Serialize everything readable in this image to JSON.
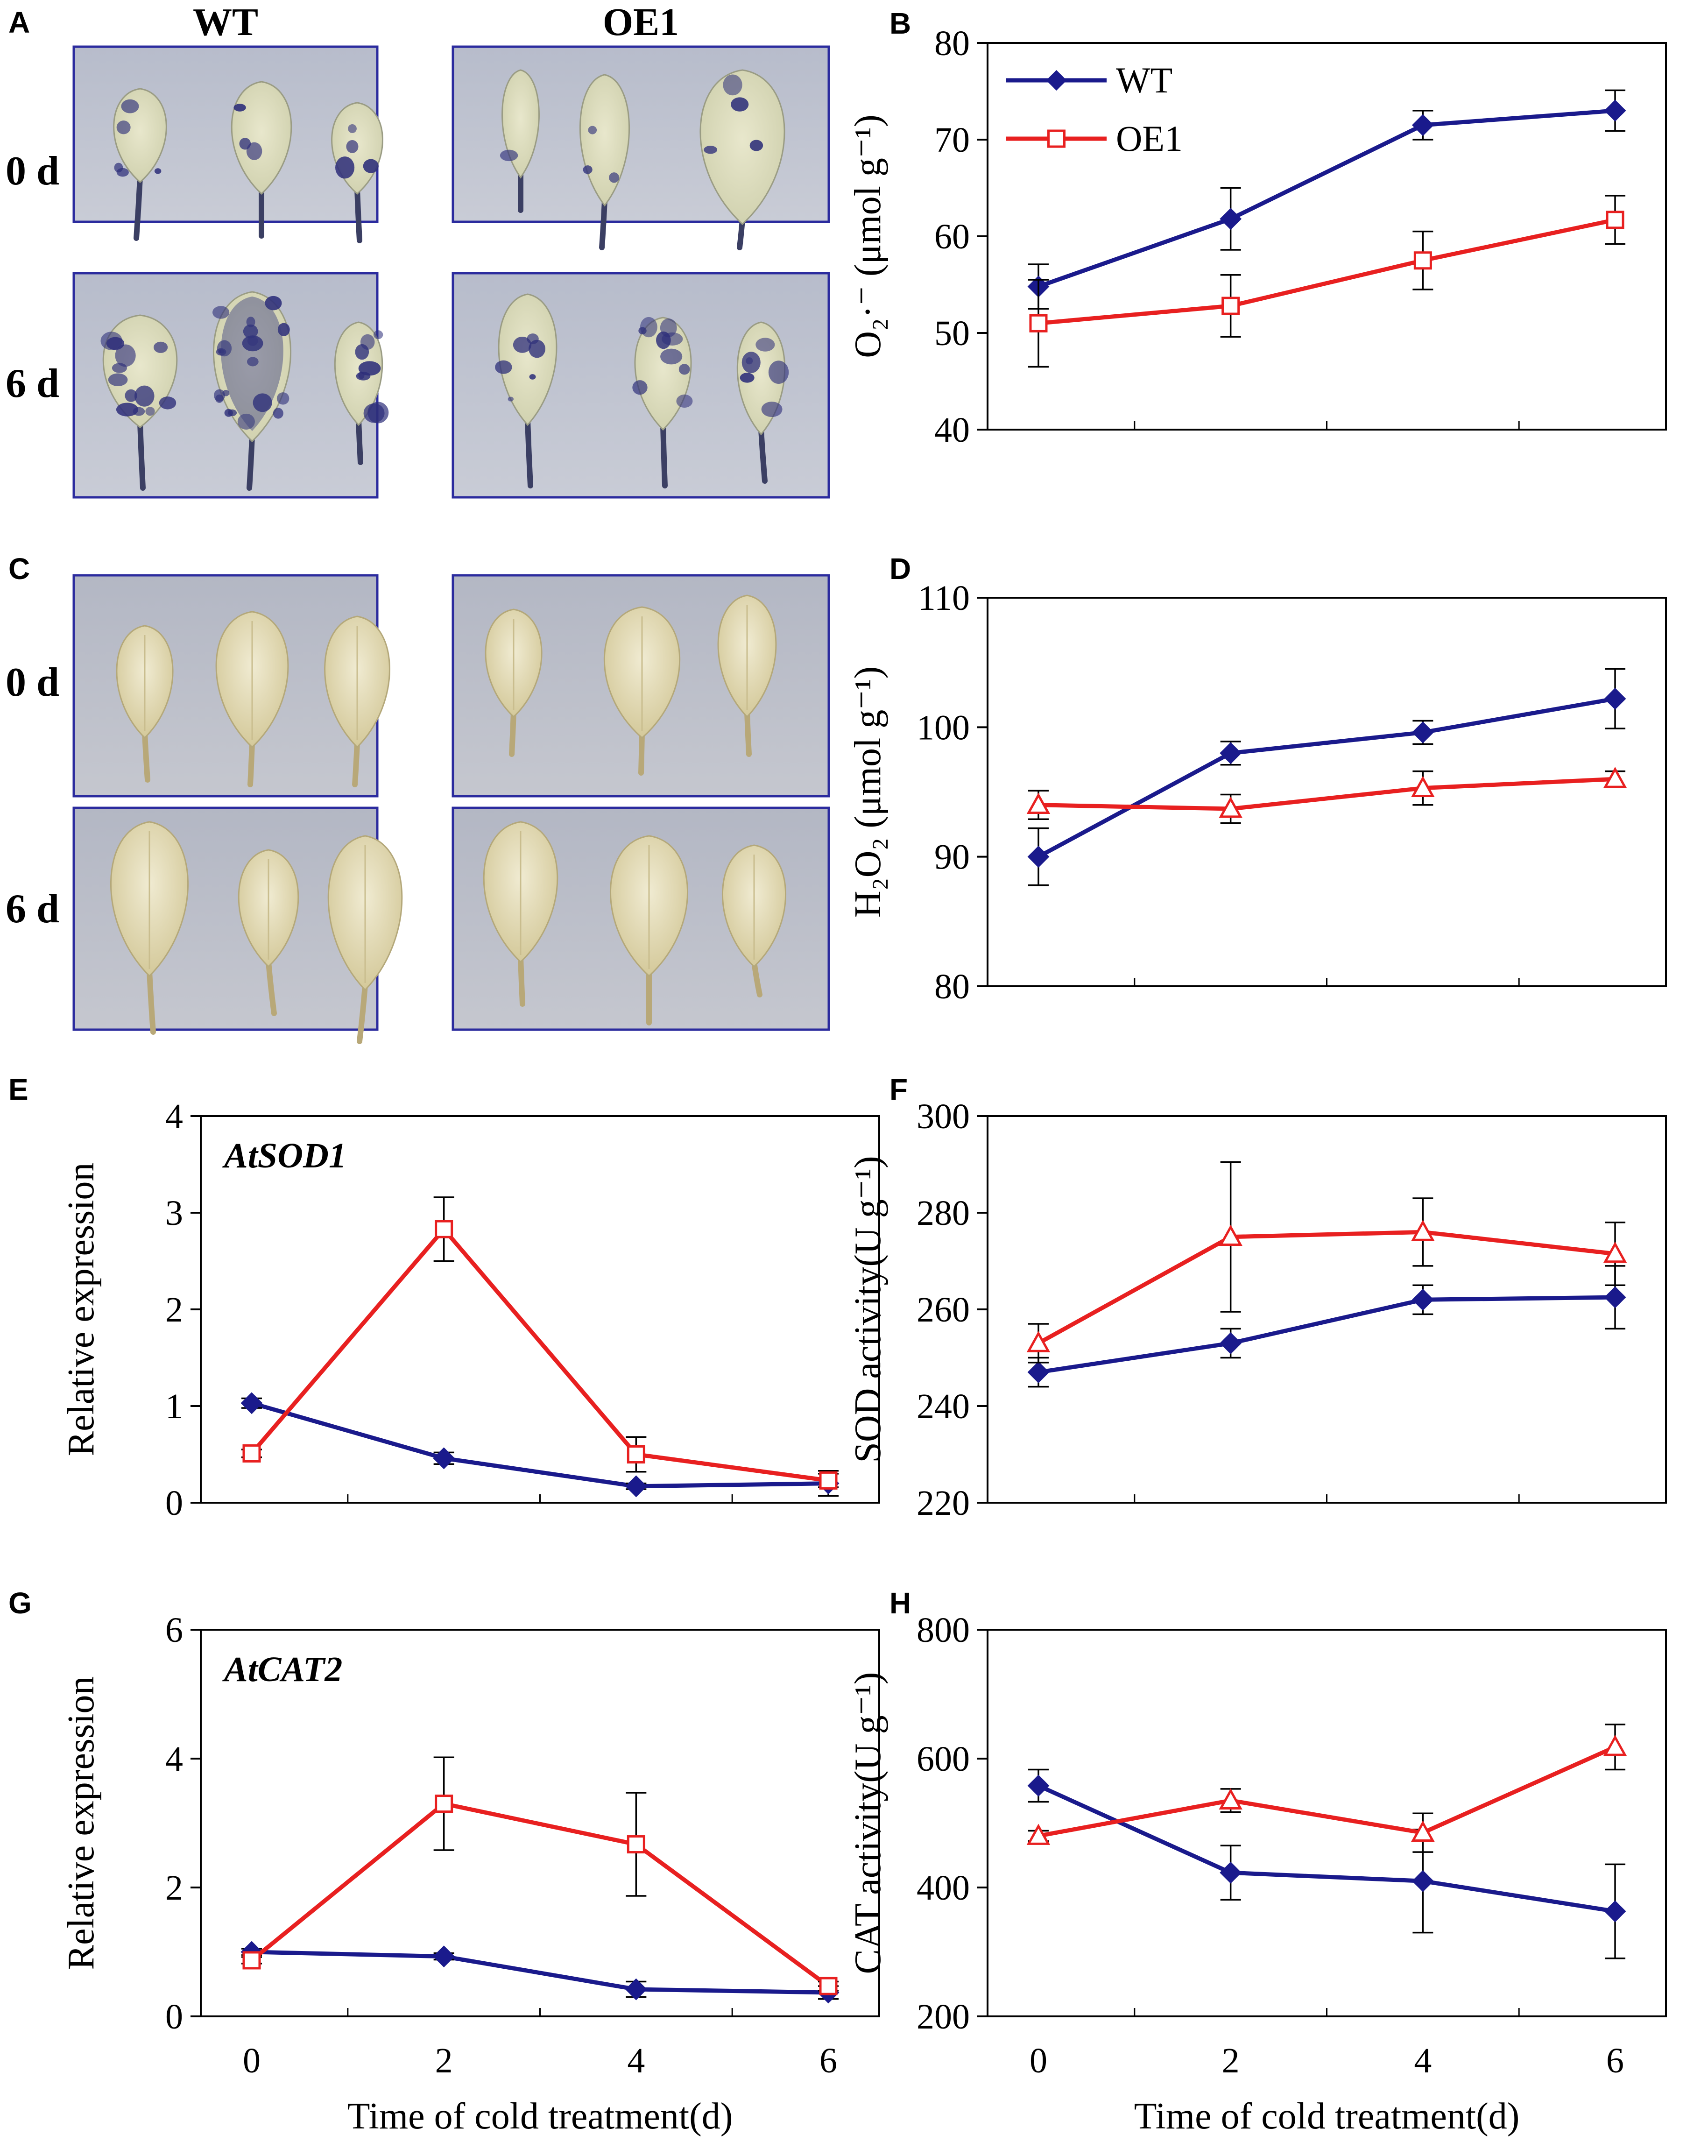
{
  "figure": {
    "photo_columns": [
      "WT",
      "OE1"
    ],
    "photo_rows": [
      "0 d",
      "6 d"
    ],
    "panels_photo": [
      {
        "letter": "A",
        "stain": "blue"
      },
      {
        "letter": "C",
        "stain": "brown"
      }
    ]
  },
  "colors": {
    "wt": "#1a1a8c",
    "oe1": "#e82020",
    "photo_border": "#2b2b9e",
    "axis": "#000000"
  },
  "chart_data": [
    {
      "letter": "B",
      "type": "line",
      "ylim": [
        40,
        80
      ],
      "yticks": [
        40,
        50,
        60,
        70,
        80
      ],
      "ylabel": "O₂·⁻ (μmol g⁻¹)",
      "x": [
        0,
        2,
        4,
        6
      ],
      "legend": [
        "WT",
        "OE1"
      ],
      "series": [
        {
          "name": "WT",
          "marker": "diamond",
          "values": [
            54.8,
            61.8,
            71.5,
            73
          ],
          "errors": [
            2.3,
            3.2,
            1.5,
            2.1
          ]
        },
        {
          "name": "OE1",
          "marker": "square",
          "values": [
            51,
            52.8,
            57.5,
            61.7
          ],
          "errors": [
            4.5,
            3.2,
            3,
            2.5
          ]
        }
      ]
    },
    {
      "letter": "D",
      "type": "line",
      "ylim": [
        80,
        110
      ],
      "yticks": [
        80,
        90,
        100,
        110
      ],
      "ylabel": "H₂O₂ (μmol g⁻¹)",
      "x": [
        0,
        2,
        4,
        6
      ],
      "series": [
        {
          "name": "WT",
          "marker": "diamond",
          "values": [
            90,
            98,
            99.6,
            102.2
          ],
          "errors": [
            2.2,
            0.9,
            0.9,
            2.3
          ]
        },
        {
          "name": "OE1",
          "marker": "triangle",
          "values": [
            94,
            93.7,
            95.3,
            96
          ],
          "errors": [
            1.1,
            1.1,
            1.3,
            0.6
          ]
        }
      ]
    },
    {
      "letter": "E",
      "type": "line",
      "ylim": [
        0,
        4
      ],
      "yticks": [
        0,
        1,
        2,
        3,
        4
      ],
      "ylabel": "Relative expression",
      "gene": "AtSOD1",
      "x": [
        0,
        2,
        4,
        6
      ],
      "series": [
        {
          "name": "WT",
          "marker": "diamond",
          "values": [
            1.03,
            0.46,
            0.17,
            0.2
          ],
          "errors": [
            0.05,
            0.06,
            0.03,
            0.13
          ]
        },
        {
          "name": "OE1",
          "marker": "square",
          "values": [
            0.51,
            2.83,
            0.5,
            0.23
          ],
          "errors": [
            0.04,
            0.33,
            0.18,
            0.07
          ]
        }
      ]
    },
    {
      "letter": "F",
      "type": "line",
      "ylim": [
        220,
        300
      ],
      "yticks": [
        220,
        240,
        260,
        280,
        300
      ],
      "ylabel": "SOD activity(U g⁻¹)",
      "x": [
        0,
        2,
        4,
        6
      ],
      "series": [
        {
          "name": "WT",
          "marker": "diamond",
          "values": [
            247,
            253,
            262,
            262.5
          ],
          "errors": [
            3,
            3,
            3,
            6.5
          ]
        },
        {
          "name": "OE1",
          "marker": "triangle",
          "values": [
            253,
            275,
            276,
            271.5
          ],
          "errors": [
            4,
            15.5,
            7,
            6.5
          ]
        }
      ]
    },
    {
      "letter": "G",
      "type": "line",
      "ylim": [
        0,
        6
      ],
      "yticks": [
        0,
        2,
        4,
        6
      ],
      "ylabel": "Relative expression",
      "gene": "AtCAT2",
      "x": [
        0,
        2,
        4,
        6
      ],
      "xlabel": "Time of cold treatment(d)",
      "xticks": [
        0,
        2,
        4,
        6
      ],
      "series": [
        {
          "name": "WT",
          "marker": "diamond",
          "values": [
            1,
            0.93,
            0.42,
            0.37
          ],
          "errors": [
            0.05,
            0.05,
            0.12,
            0.1
          ]
        },
        {
          "name": "OE1",
          "marker": "square",
          "values": [
            0.87,
            3.3,
            2.67,
            0.47
          ],
          "errors": [
            0.05,
            0.72,
            0.8,
            0.07
          ]
        }
      ]
    },
    {
      "letter": "H",
      "type": "line",
      "ylim": [
        200,
        800
      ],
      "yticks": [
        200,
        400,
        600,
        800
      ],
      "ylabel": "CAT activity(U g⁻¹)",
      "x": [
        0,
        2,
        4,
        6
      ],
      "xlabel": "Time of cold treatment(d)",
      "xticks": [
        0,
        2,
        4,
        6
      ],
      "series": [
        {
          "name": "WT",
          "marker": "diamond",
          "values": [
            558,
            423,
            410,
            363
          ],
          "errors": [
            25,
            42,
            80,
            73
          ]
        },
        {
          "name": "OE1",
          "marker": "triangle",
          "values": [
            480,
            535,
            485,
            618
          ],
          "errors": [
            8,
            18,
            30,
            35
          ]
        }
      ]
    }
  ]
}
